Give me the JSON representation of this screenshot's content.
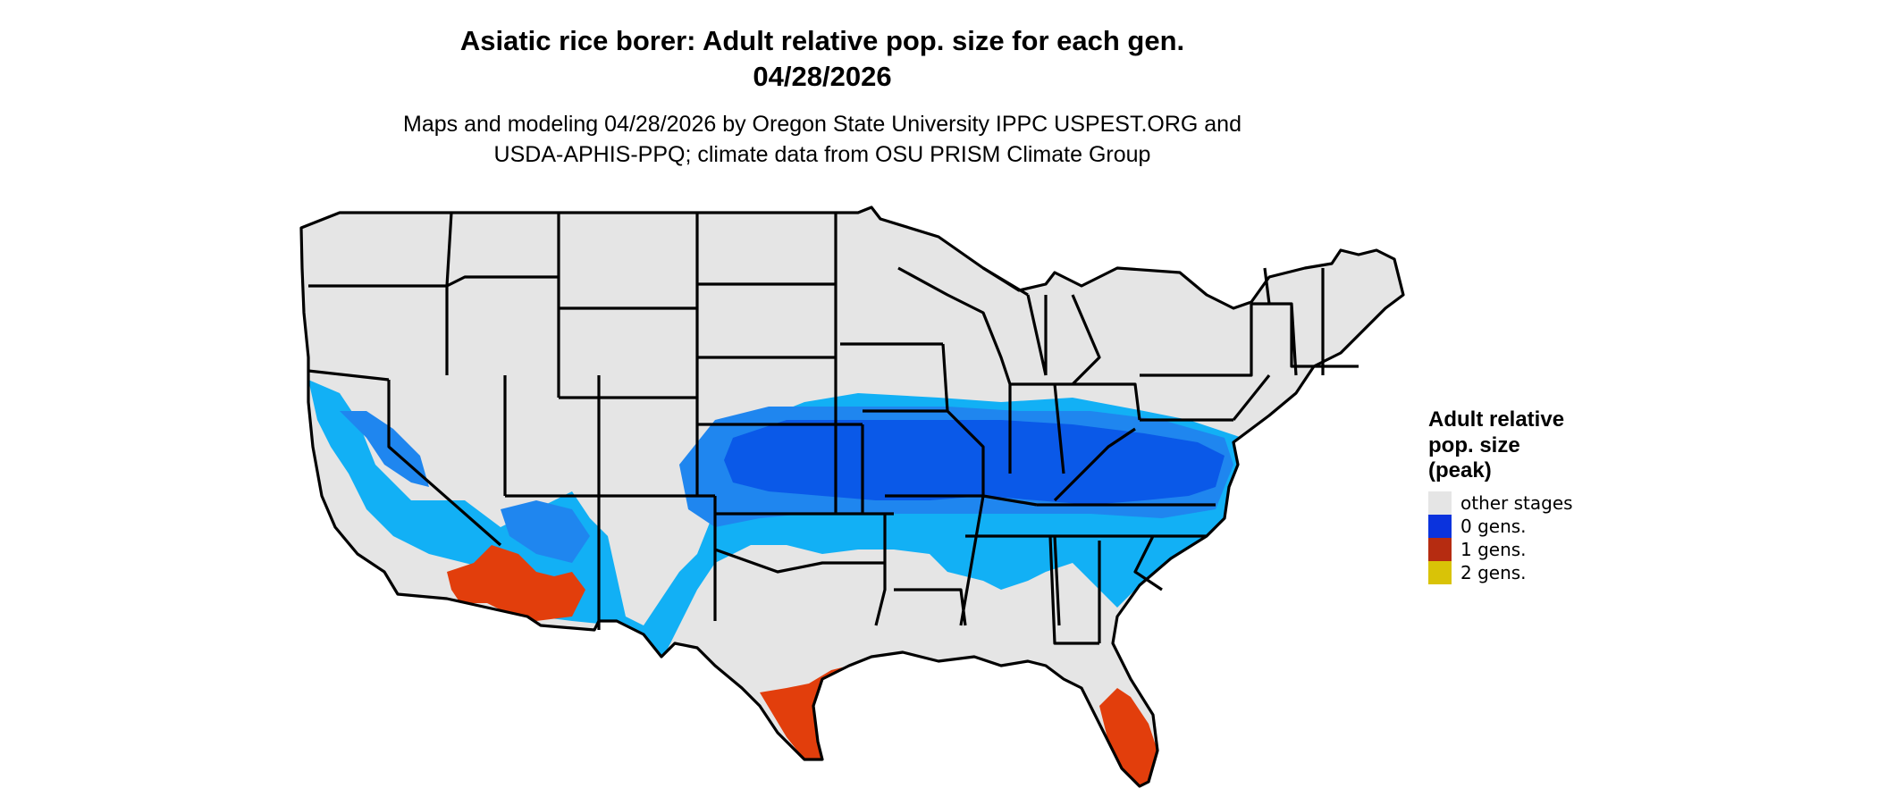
{
  "title_line1": "Asiatic rice borer: Adult relative pop. size for each gen.",
  "title_line2": "04/28/2026",
  "subtitle_line1": "Maps and modeling 04/28/2026 by Oregon State University IPPC USPEST.ORG and",
  "subtitle_line2": "USDA-APHIS-PPQ; climate data from OSU PRISM Climate Group",
  "legend": {
    "title_line1": "Adult relative",
    "title_line2": "pop. size",
    "title_line3": "(peak)",
    "items": [
      {
        "label": "other stages",
        "color": "#e5e5e5"
      },
      {
        "label": "0 gens.",
        "color": "#0b33dd"
      },
      {
        "label": "1 gens.",
        "color": "#b62c11"
      },
      {
        "label": "2 gens.",
        "color": "#d9c307"
      }
    ]
  },
  "colors": {
    "land": "#e5e5e5",
    "light_blue": "#12b0f5",
    "mid_blue": "#1f86ef",
    "dark_blue": "#0a59e8",
    "orange_red": "#e23e0c",
    "dark_red": "#c8320a",
    "border": "#000000"
  }
}
